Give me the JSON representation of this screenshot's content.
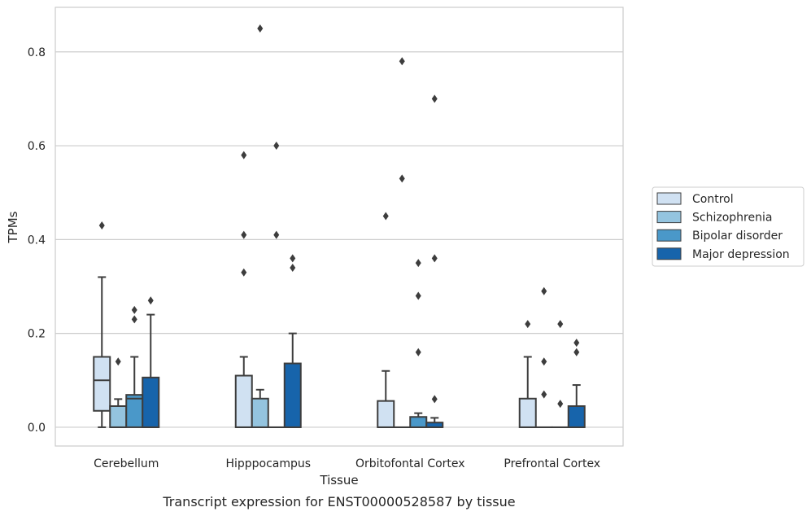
{
  "caption": "Transcript expression for ENST00000528587 by tissue",
  "chart_data": {
    "type": "box",
    "xlabel": "Tissue",
    "ylabel": "TPMs",
    "ylim": [
      -0.04,
      0.895
    ],
    "yticks": [
      0.0,
      0.2,
      0.4,
      0.6,
      0.8
    ],
    "ytick_labels": [
      "0.0",
      "0.2",
      "0.4",
      "0.6",
      "0.8"
    ],
    "grid": "horizontal",
    "legend_position": "right",
    "categories": [
      "Cerebellum",
      "Hipppocampus",
      "Orbitofontal Cortex",
      "Prefrontal Cortex"
    ],
    "series": [
      {
        "name": "Control",
        "color": "#d0e1f2",
        "boxes": [
          {
            "q1": 0.035,
            "median": 0.1,
            "q3": 0.15,
            "whislo": 0.0,
            "whishi": 0.32,
            "fliers": [
              0.43
            ]
          },
          {
            "q1": 0.0,
            "median": 0.0,
            "q3": 0.11,
            "whislo": 0.0,
            "whishi": 0.15,
            "fliers": [
              0.33,
              0.41,
              0.58
            ]
          },
          {
            "q1": 0.0,
            "median": 0.0,
            "q3": 0.056,
            "whislo": 0.0,
            "whishi": 0.12,
            "fliers": [
              0.45
            ]
          },
          {
            "q1": 0.0,
            "median": 0.0,
            "q3": 0.061,
            "whislo": 0.0,
            "whishi": 0.15,
            "fliers": [
              0.22
            ]
          }
        ]
      },
      {
        "name": "Schizophrenia",
        "color": "#94c4df",
        "boxes": [
          {
            "q1": 0.0,
            "median": 0.0,
            "q3": 0.045,
            "whislo": 0.0,
            "whishi": 0.06,
            "fliers": [
              0.14
            ]
          },
          {
            "q1": 0.0,
            "median": 0.0,
            "q3": 0.061,
            "whislo": 0.0,
            "whishi": 0.08,
            "fliers": [
              0.85
            ]
          },
          {
            "q1": 0.0,
            "median": 0.0,
            "q3": 0.0,
            "whislo": 0.0,
            "whishi": 0.0,
            "fliers": [
              0.53,
              0.78
            ]
          },
          {
            "q1": 0.0,
            "median": 0.0,
            "q3": 0.0,
            "whislo": 0.0,
            "whishi": 0.0,
            "fliers": [
              0.07,
              0.14,
              0.29
            ]
          }
        ]
      },
      {
        "name": "Bipolar disorder",
        "color": "#4a98c9",
        "boxes": [
          {
            "q1": 0.0,
            "median": 0.061,
            "q3": 0.069,
            "whislo": 0.0,
            "whishi": 0.15,
            "fliers": [
              0.23,
              0.25
            ]
          },
          {
            "q1": 0.0,
            "median": 0.0,
            "q3": 0.0,
            "whislo": 0.0,
            "whishi": 0.0,
            "fliers": [
              0.41,
              0.6
            ]
          },
          {
            "q1": 0.0,
            "median": 0.0,
            "q3": 0.022,
            "whislo": 0.0,
            "whishi": 0.03,
            "fliers": [
              0.16,
              0.28,
              0.35
            ]
          },
          {
            "q1": 0.0,
            "median": 0.0,
            "q3": 0.0,
            "whislo": 0.0,
            "whishi": 0.0,
            "fliers": [
              0.05,
              0.22
            ]
          }
        ]
      },
      {
        "name": "Major depression",
        "color": "#1764ab",
        "boxes": [
          {
            "q1": 0.0,
            "median": 0.0,
            "q3": 0.106,
            "whislo": 0.0,
            "whishi": 0.24,
            "fliers": [
              0.27
            ]
          },
          {
            "q1": 0.0,
            "median": 0.0,
            "q3": 0.136,
            "whislo": 0.0,
            "whishi": 0.2,
            "fliers": [
              0.34,
              0.36
            ]
          },
          {
            "q1": 0.0,
            "median": 0.0,
            "q3": 0.01,
            "whislo": 0.0,
            "whishi": 0.02,
            "fliers": [
              0.06,
              0.36,
              0.7
            ]
          },
          {
            "q1": 0.0,
            "median": 0.0,
            "q3": 0.045,
            "whislo": 0.0,
            "whishi": 0.09,
            "fliers": [
              0.16,
              0.18
            ]
          }
        ]
      }
    ]
  }
}
